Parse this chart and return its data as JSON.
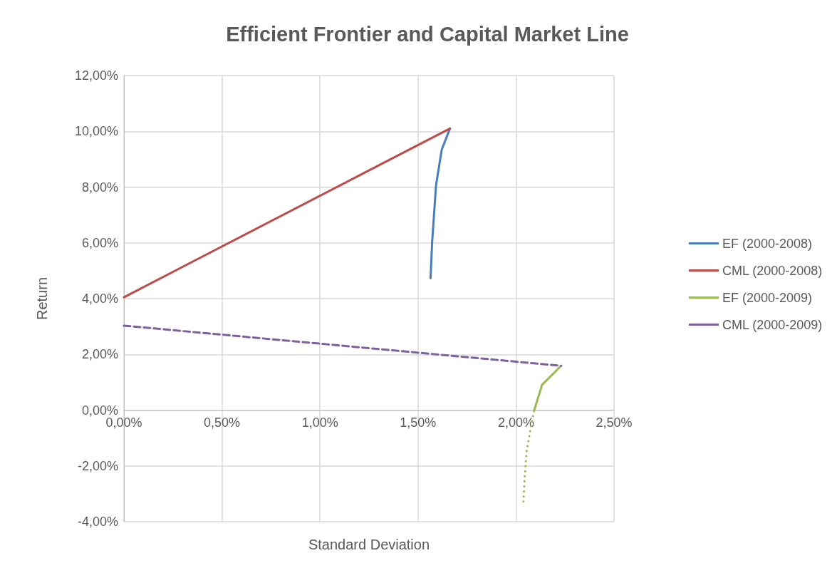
{
  "chart_data": {
    "type": "line",
    "title": "Efficient Frontier and Capital Market Line",
    "xlabel": "Standard Deviation",
    "ylabel": "Return",
    "xlim": [
      0,
      2.5
    ],
    "xticks": [
      {
        "value": 0,
        "label": "0,00%"
      },
      {
        "value": 0.5,
        "label": "0,50%"
      },
      {
        "value": 1,
        "label": "1,00%"
      },
      {
        "value": 1.5,
        "label": "1,50%"
      },
      {
        "value": 2,
        "label": "2,00%"
      },
      {
        "value": 2.5,
        "label": "2,50%"
      }
    ],
    "ylim": [
      -4,
      12
    ],
    "yticks": [
      {
        "value": -4,
        "label": "-4,00%"
      },
      {
        "value": -2,
        "label": "-2,00%"
      },
      {
        "value": 0,
        "label": "0,00%"
      },
      {
        "value": 2,
        "label": "2,00%"
      },
      {
        "value": 4,
        "label": "4,00%"
      },
      {
        "value": 6,
        "label": "6,00%"
      },
      {
        "value": 8,
        "label": "8,00%"
      },
      {
        "value": 10,
        "label": "10,00%"
      },
      {
        "value": 12,
        "label": "12,00%"
      }
    ],
    "grid": true,
    "legend": "right",
    "marker": "none",
    "series": [
      {
        "name": "EF (2000-2008)",
        "color": "#4a7ebb",
        "line_style": "solid",
        "x": [
          1.564,
          1.572,
          1.592,
          1.621,
          1.663
        ],
        "values": [
          4.73,
          6.01,
          8.06,
          9.34,
          10.1
        ]
      },
      {
        "name": "CML (2000-2008)",
        "color": "#be4b48",
        "line_style": "solid",
        "x": [
          0,
          1.663
        ],
        "values": [
          4.05,
          10.1
        ]
      },
      {
        "name": "EF (2000-2009)",
        "color": "#98b954",
        "line_style": "solid",
        "x": [
          2.093,
          2.133,
          2.23
        ],
        "values": [
          0,
          0.91,
          1.59
        ]
      },
      {
        "name": "CML (2000-2009)",
        "color": "#7d60a0",
        "line_style": "dashed",
        "x": [
          0,
          2.23
        ],
        "values": [
          3.03,
          1.59
        ]
      },
      {
        "color": "#98b954",
        "line_style": "dotted",
        "x": [
          2.038,
          2.045,
          2.054,
          2.075,
          2.093
        ],
        "values": [
          -3.28,
          -2.34,
          -1.49,
          -0.64,
          0
        ]
      }
    ]
  }
}
